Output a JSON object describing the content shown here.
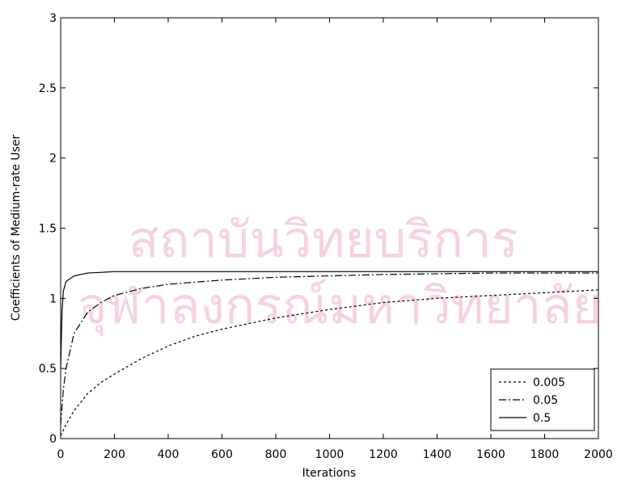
{
  "watermark": [
    "สถาบันวิทยบริการ",
    "จุฬาลงกรณ์มหาวิทยาลัย"
  ],
  "chart_data": {
    "type": "line",
    "xlabel": "Iterations",
    "ylabel": "Coefficients of Medium-rate User",
    "xlim": [
      0,
      2000
    ],
    "ylim": [
      0,
      3
    ],
    "xticks": [
      0,
      200,
      400,
      600,
      800,
      1000,
      1200,
      1400,
      1600,
      1800,
      2000
    ],
    "yticks": [
      0,
      0.5,
      1,
      1.5,
      2,
      2.5,
      3
    ],
    "legend": "lower right",
    "series": [
      {
        "name": "0.005",
        "color": "#000000",
        "dash": "dotted",
        "x": [
          0,
          20,
          50,
          100,
          150,
          200,
          300,
          400,
          500,
          600,
          800,
          1000,
          1200,
          1400,
          1600,
          1800,
          2000
        ],
        "values": [
          0.02,
          0.1,
          0.2,
          0.32,
          0.4,
          0.46,
          0.57,
          0.66,
          0.73,
          0.78,
          0.86,
          0.92,
          0.97,
          1.0,
          1.02,
          1.04,
          1.06
        ]
      },
      {
        "name": "0.05",
        "color": "#000000",
        "dash": "dashdot",
        "x": [
          0,
          10,
          20,
          50,
          100,
          150,
          200,
          300,
          400,
          600,
          800,
          1000,
          1200,
          1600,
          2000
        ],
        "values": [
          0.1,
          0.35,
          0.5,
          0.75,
          0.9,
          0.97,
          1.02,
          1.07,
          1.1,
          1.13,
          1.15,
          1.16,
          1.17,
          1.18,
          1.18
        ]
      },
      {
        "name": "0.5",
        "color": "#000000",
        "dash": "solid",
        "x": [
          0,
          5,
          10,
          20,
          50,
          100,
          200,
          2000
        ],
        "values": [
          0.5,
          0.9,
          1.05,
          1.12,
          1.16,
          1.18,
          1.19,
          1.19
        ]
      }
    ]
  }
}
